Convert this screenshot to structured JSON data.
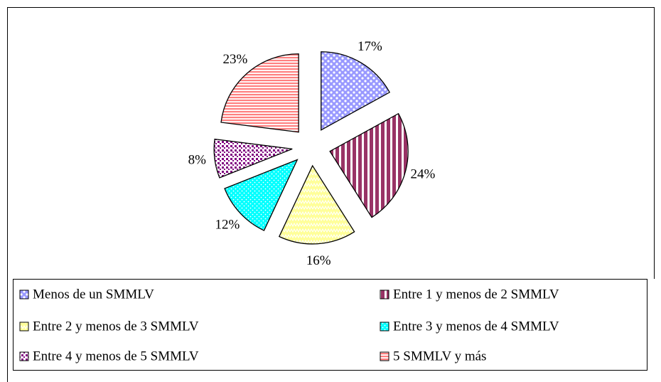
{
  "chart_data": {
    "type": "pie",
    "categories": [
      "Menos de un SMMLV",
      "Entre 1 y menos de 2 SMMLV",
      "Entre 2 y menos de 3 SMMLV",
      "Entre 3 y menos de 4 SMMLV",
      "Entre 4 y menos de 5 SMMLV",
      "5 SMMLV y más"
    ],
    "values": [
      17,
      24,
      16,
      12,
      8,
      23
    ],
    "value_labels": [
      "17%",
      "24%",
      "16%",
      "12%",
      "8%",
      "23%"
    ],
    "colors": [
      "#9999ff",
      "#993366",
      "#ffff99",
      "#00ffff",
      "#800080",
      "#ff8080"
    ],
    "legend": "bottom"
  }
}
